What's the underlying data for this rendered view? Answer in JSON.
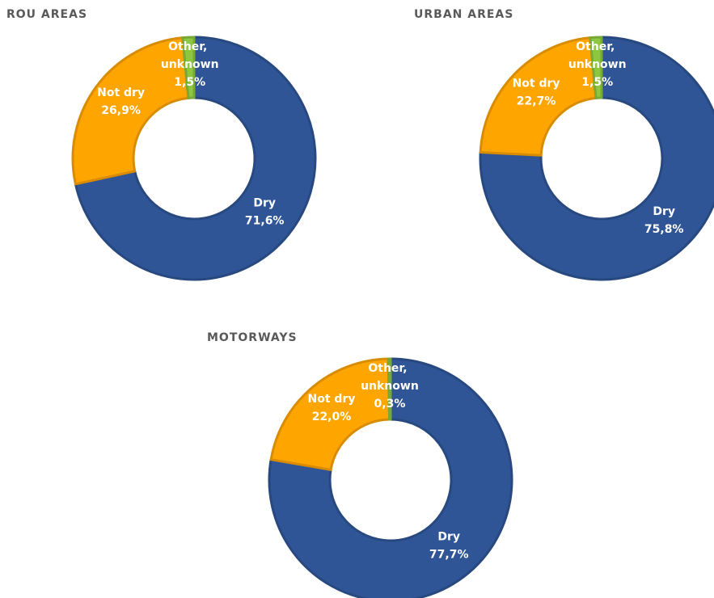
{
  "chart_data": [
    {
      "type": "donut",
      "title": "ROU AREAS",
      "categories": [
        "Dry",
        "Not dry",
        "Other, unknown"
      ],
      "values": [
        71.6,
        26.9,
        1.5
      ],
      "value_labels": [
        "71,6%",
        "26,9%",
        "1,5%"
      ],
      "colors": [
        "#2f5597",
        "#ffa500",
        "#8dc63f"
      ]
    },
    {
      "type": "donut",
      "title": "URBAN AREAS",
      "categories": [
        "Dry",
        "Not dry",
        "Other, unknown"
      ],
      "values": [
        75.8,
        22.7,
        1.5
      ],
      "value_labels": [
        "75,8%",
        "22,7%",
        "1,5%"
      ],
      "colors": [
        "#2f5597",
        "#ffa500",
        "#8dc63f"
      ]
    },
    {
      "type": "donut",
      "title": "MOTORWAYS",
      "categories": [
        "Dry",
        "Not dry",
        "Other, unknown"
      ],
      "values": [
        77.7,
        22.0,
        0.3
      ],
      "value_labels": [
        "77,7%",
        "22,0%",
        "0,3%"
      ],
      "colors": [
        "#2f5597",
        "#ffa500",
        "#8dc63f"
      ]
    }
  ]
}
